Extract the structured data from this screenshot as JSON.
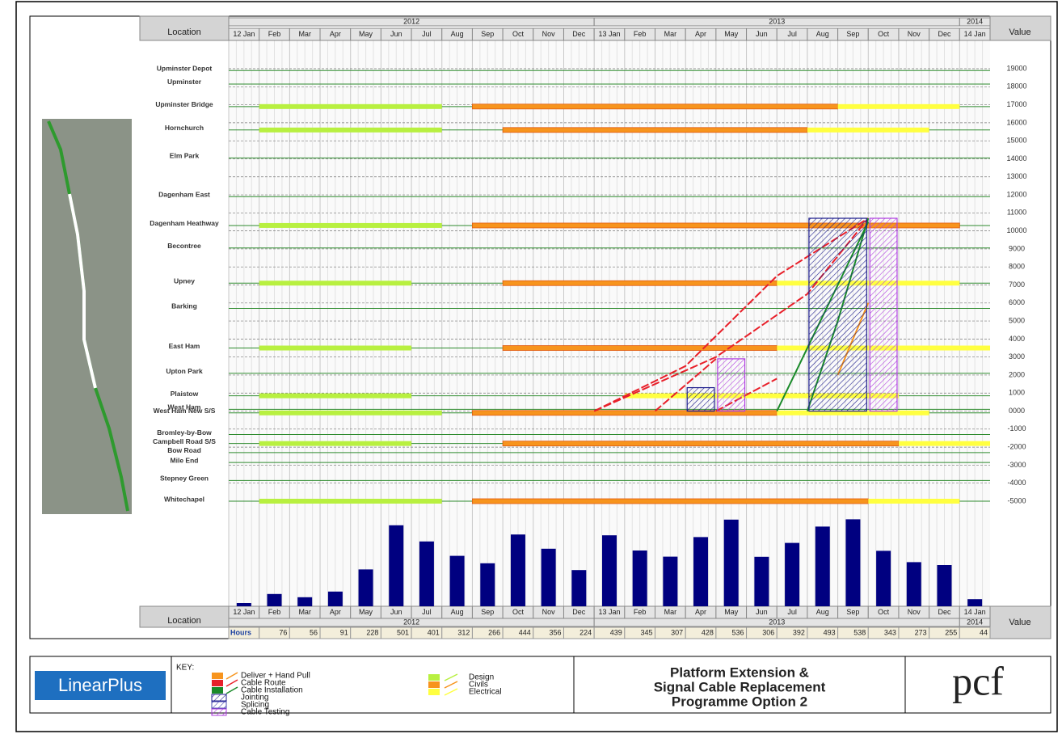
{
  "header": {
    "location": "Location",
    "value": "Value",
    "years": [
      "2012",
      "2013",
      "2014"
    ]
  },
  "chart_data": [
    {
      "type": "timeline",
      "categories": [
        "12 Jan",
        "Feb",
        "Mar",
        "Apr",
        "May",
        "Jun",
        "Jul",
        "Aug",
        "Sep",
        "Oct",
        "Nov",
        "Dec",
        "13 Jan",
        "Feb",
        "Mar",
        "Apr",
        "May",
        "Jun",
        "Jul",
        "Aug",
        "Sep",
        "Oct",
        "Nov",
        "Dec",
        "14 Jan"
      ],
      "ylim": [
        -5000,
        19000
      ],
      "yticks": [
        19000,
        18000,
        17000,
        16000,
        15000,
        14000,
        13000,
        12000,
        11000,
        10000,
        9000,
        8000,
        7000,
        6000,
        5000,
        4000,
        3000,
        2000,
        1000,
        {
          "value": 0,
          "label": "0000"
        },
        -1000,
        -2000,
        -3000,
        -4000,
        -5000
      ],
      "grid": true,
      "locations": [
        {
          "name": "Upminster Depot",
          "chainage": 18900
        },
        {
          "name": "Upminster",
          "chainage": 18150
        },
        {
          "name": "Upminster Bridge",
          "chainage": 16900
        },
        {
          "name": "Hornchurch",
          "chainage": 15600
        },
        {
          "name": "Elm Park",
          "chainage": 14050
        },
        {
          "name": "Dagenham East",
          "chainage": 11900
        },
        {
          "name": "Dagenham Heathway",
          "chainage": 10300
        },
        {
          "name": "Becontree",
          "chainage": 9050
        },
        {
          "name": "Upney",
          "chainage": 7100
        },
        {
          "name": "Barking",
          "chainage": 5700
        },
        {
          "name": "East Ham",
          "chainage": 3500
        },
        {
          "name": "Upton Park",
          "chainage": 2100
        },
        {
          "name": "Plaistow",
          "chainage": 850
        },
        {
          "name": "West Ham",
          "chainage": 100
        },
        {
          "name": "West Ham New S/S",
          "chainage": -100
        },
        {
          "name": "Bromley-by-Bow",
          "chainage": -1300
        },
        {
          "name": "Campbell Road S/S",
          "chainage": -1800
        },
        {
          "name": "Bow Road",
          "chainage": -2300
        },
        {
          "name": "Mile End",
          "chainage": -2850
        },
        {
          "name": "Stepney Green",
          "chainage": -3850
        },
        {
          "name": "Whitechapel",
          "chainage": -5000
        }
      ],
      "key_title": "KEY:",
      "key": {
        "cable": [
          {
            "name": "Deliver + Hand Pull",
            "color": "#f7941d",
            "lines": [
              {
                "x": [
                  "2013-09",
                  "2013-10"
                ],
                "values": [
                  2000,
                  6000
                ]
              }
            ]
          },
          {
            "name": "Cable Route",
            "color": "#e8202a",
            "lines": [
              {
                "x": [
                  "2013-01",
                  "2013-05",
                  "2013-08",
                  "2013-10"
                ],
                "values": [
                  0,
                  3000,
                  6500,
                  10700
                ]
              },
              {
                "x": [
                  "2013-01",
                  "2013-04",
                  "2013-07",
                  "2013-10"
                ],
                "values": [
                  0,
                  2500,
                  7500,
                  10700
                ]
              },
              {
                "x": [
                  "2013-03",
                  "2013-05"
                ],
                "values": [
                  0,
                  2900
                ]
              },
              {
                "x": [
                  "2013-05",
                  "2013-07"
                ],
                "values": [
                  0,
                  1800
                ]
              }
            ]
          },
          {
            "name": "Cable Installation",
            "color": "#1a8a2a",
            "lines": [
              {
                "x": [
                  "2013-08",
                  "2013-09",
                  "2013-10"
                ],
                "values": [
                  0,
                  5000,
                  10700
                ]
              },
              {
                "x": [
                  "2013-07",
                  "2013-09",
                  "2013-10"
                ],
                "values": [
                  0,
                  7000,
                  10500
                ]
              }
            ]
          },
          {
            "name": "Jointing",
            "color": "#1c1c8c",
            "hatch": true,
            "blocks": [
              {
                "start": "2013-08",
                "end": "2013-09",
                "from": 0,
                "to": 10700
              },
              {
                "start": "2013-04",
                "end": "2013-04",
                "from": 0,
                "to": 1300
              }
            ]
          },
          {
            "name": "Splicing",
            "color": "#4a4ab0",
            "hatch": true
          },
          {
            "name": "Cable Testing",
            "color": "#b040e0",
            "hatch": true,
            "blocks": [
              {
                "start": "2013-10",
                "end": "2013-10",
                "from": 0,
                "to": 10700
              },
              {
                "start": "2013-05",
                "end": "2013-05",
                "from": 0,
                "to": 2900
              }
            ]
          }
        ],
        "works": [
          {
            "name": "Design",
            "color": "#b8f040",
            "bars": [
              {
                "y": 16900,
                "start": "2012-02",
                "end": "2012-07"
              },
              {
                "y": 15600,
                "start": "2012-02",
                "end": "2012-07"
              },
              {
                "y": 10300,
                "start": "2012-02",
                "end": "2012-07"
              },
              {
                "y": 7100,
                "start": "2012-02",
                "end": "2012-06"
              },
              {
                "y": 3500,
                "start": "2012-02",
                "end": "2012-06"
              },
              {
                "y": 850,
                "start": "2012-02",
                "end": "2012-06"
              },
              {
                "y": -100,
                "start": "2012-02",
                "end": "2012-07"
              },
              {
                "y": -1800,
                "start": "2012-02",
                "end": "2012-06"
              },
              {
                "y": -5000,
                "start": "2012-02",
                "end": "2012-07"
              }
            ]
          },
          {
            "name": "Civils",
            "color": "#f7941d",
            "bars": [
              {
                "y": 16900,
                "start": "2012-09",
                "end": "2013-08"
              },
              {
                "y": 15600,
                "start": "2012-10",
                "end": "2013-07"
              },
              {
                "y": 10300,
                "start": "2012-09",
                "end": "2013-12"
              },
              {
                "y": 7100,
                "start": "2012-10",
                "end": "2013-06"
              },
              {
                "y": 3500,
                "start": "2012-10",
                "end": "2013-06"
              },
              {
                "y": -100,
                "start": "2012-09",
                "end": "2013-06"
              },
              {
                "y": -1800,
                "start": "2012-10",
                "end": "2013-10"
              },
              {
                "y": -5000,
                "start": "2012-09",
                "end": "2013-09"
              }
            ]
          },
          {
            "name": "Electrical",
            "color": "#ffff40",
            "bars": [
              {
                "y": 16900,
                "start": "2013-09",
                "end": "2013-12"
              },
              {
                "y": 15600,
                "start": "2013-08",
                "end": "2013-11"
              },
              {
                "y": 7100,
                "start": "2013-07",
                "end": "2013-12"
              },
              {
                "y": 3500,
                "start": "2013-07",
                "end": "2014-01"
              },
              {
                "y": 850,
                "start": "2013-02",
                "end": "2013-10"
              },
              {
                "y": -100,
                "start": "2013-07",
                "end": "2013-11"
              },
              {
                "y": -1800,
                "start": "2013-11",
                "end": "2014-01"
              },
              {
                "y": -5000,
                "start": "2013-10",
                "end": "2013-12"
              }
            ]
          }
        ]
      }
    },
    {
      "type": "bar",
      "label": "Hours",
      "color": "#000080",
      "categories": [
        "12 Jan",
        "Feb",
        "Mar",
        "Apr",
        "May",
        "Jun",
        "Jul",
        "Aug",
        "Sep",
        "Oct",
        "Nov",
        "Dec",
        "13 Jan",
        "Feb",
        "Mar",
        "Apr",
        "May",
        "Jun",
        "Jul",
        "Aug",
        "Sep",
        "Oct",
        "Nov",
        "Dec",
        "14 Jan"
      ],
      "values": [
        20,
        76,
        56,
        91,
        228,
        501,
        401,
        312,
        266,
        444,
        356,
        224,
        439,
        345,
        307,
        428,
        536,
        306,
        392,
        493,
        538,
        343,
        273,
        255,
        44
      ]
    }
  ],
  "footer": {
    "logo": "LinearPlus",
    "title": [
      "Platform Extension &",
      "Signal Cable Replacement",
      "Programme Option 2"
    ],
    "brand": "pcf"
  }
}
